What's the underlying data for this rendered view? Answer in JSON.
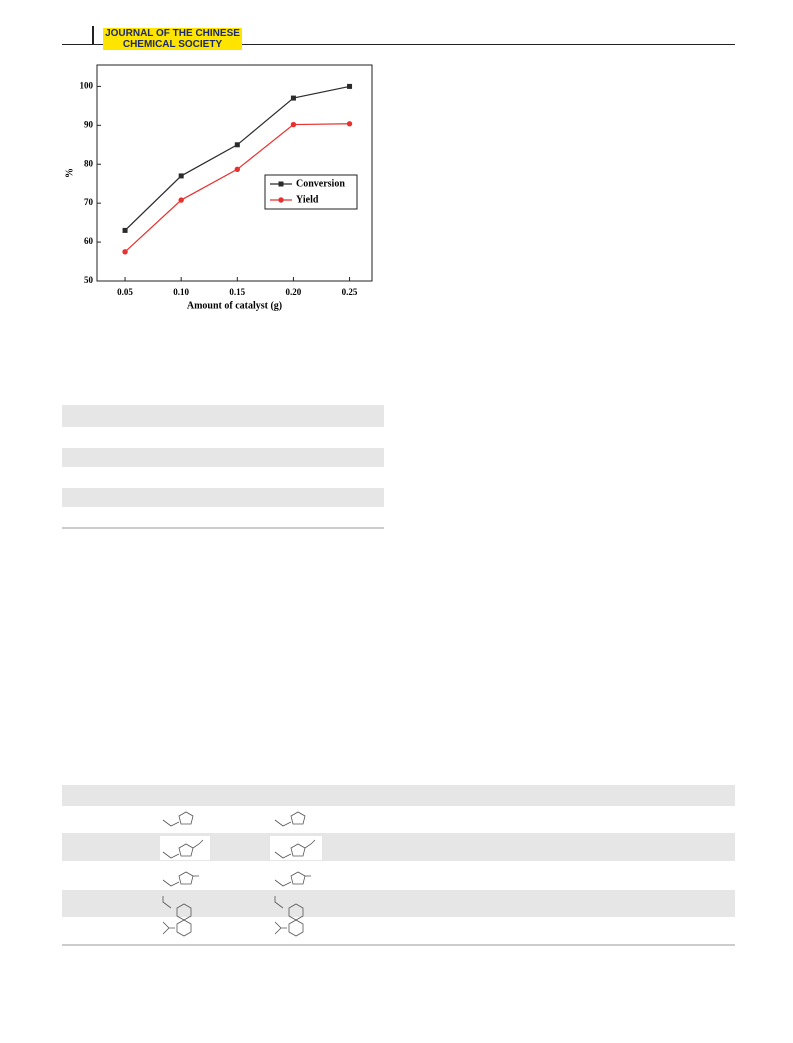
{
  "header": {
    "journal": [
      "JOURNAL OF THE CHINESE",
      "CHEMICAL SOCIETY"
    ]
  },
  "chart_data": {
    "type": "line",
    "x_label": "Amount of catalyst (g)",
    "y_label": "%",
    "x": [
      0.05,
      0.1,
      0.15,
      0.2,
      0.25
    ],
    "series": [
      {
        "name": "Conversion",
        "color": "#2b2b2b",
        "marker": "square",
        "values": [
          63,
          77,
          85,
          97,
          100
        ]
      },
      {
        "name": "Yield",
        "color": "#e8302e",
        "marker": "circle",
        "values": [
          57.5,
          70.8,
          78.7,
          90.2,
          90.4
        ]
      }
    ],
    "xlim": [
      0.025,
      0.27
    ],
    "ylim": [
      50,
      105.5
    ],
    "xticks": [
      {
        "value": 0.05,
        "label": "0.05"
      },
      {
        "value": 0.1,
        "label": "0.10"
      },
      {
        "value": 0.15,
        "label": "0.15"
      },
      {
        "value": 0.2,
        "label": "0.20"
      },
      {
        "value": 0.25,
        "label": "0.25"
      }
    ],
    "yticks": [
      50,
      60,
      70,
      80,
      90,
      100
    ],
    "legend": "right"
  }
}
